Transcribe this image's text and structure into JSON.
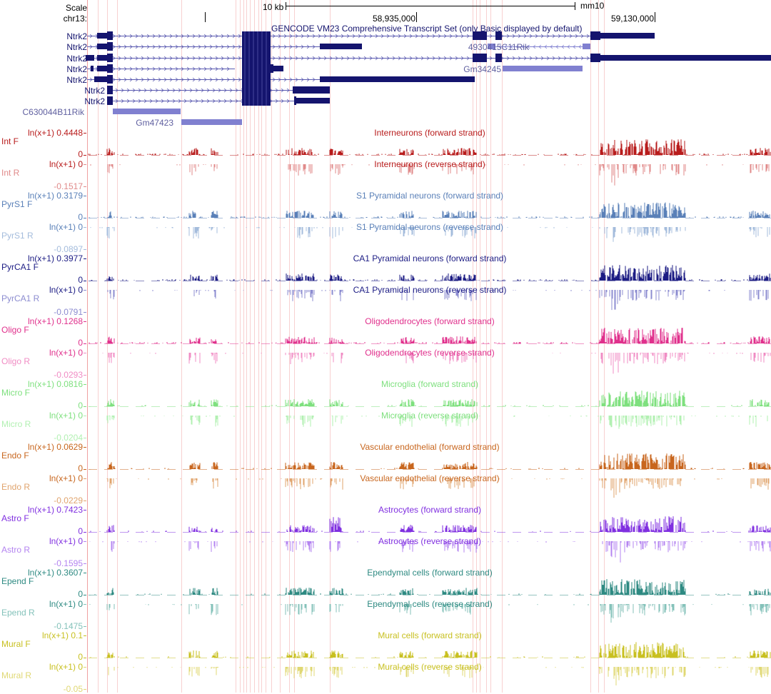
{
  "header": {
    "scale_label": "Scale",
    "chrom_label": "chr13:",
    "scale_bar_label": "10 kb",
    "assembly": "mm10",
    "positions": [
      "58,935,000",
      "59,130,000"
    ]
  },
  "gene_track": {
    "title": "GENCODE VM23 Comprehensive Transcript Set (only Basic displayed by default)",
    "colors": {
      "coding": "#14146e",
      "noncoding": "#8080d0"
    },
    "transcripts": [
      "Ntrk2",
      "Ntrk2",
      "Ntrk2",
      "Ntrk2",
      "Ntrk2",
      "Ntrk2",
      "Ntrk2"
    ],
    "other_genes": [
      "C630044B11Rik",
      "Gm47423",
      "4930415C11Rik",
      "Gm34245"
    ]
  },
  "scale_prefix": "ln(x+1)",
  "tracks": [
    {
      "name": "Int",
      "f_label": "Int F",
      "r_label": "Int R",
      "f_title": "Interneurons (forward strand)",
      "r_title": "Interneurons (reverse strand)",
      "max": "0.4448",
      "min": "-0.1517",
      "zero": "0",
      "f_color": "#b81c1c",
      "r_color": "#e08a8a"
    },
    {
      "name": "PyrS1",
      "f_label": "PyrS1 F",
      "r_label": "PyrS1 R",
      "f_title": "S1 Pyramidal neurons (forward strand)",
      "r_title": "S1 Pyramidal neurons (reverse strand)",
      "max": "0.3179",
      "min": "-0.0897",
      "zero": "0",
      "f_color": "#5a80b8",
      "r_color": "#a4bcdc"
    },
    {
      "name": "PyrCA1",
      "f_label": "PyrCA1 F",
      "r_label": "PyrCA1 R",
      "f_title": "CA1 Pyramidal neurons (forward strand)",
      "r_title": "CA1 Pyramidal neurons (reverse strand)",
      "max": "0.3977",
      "min": "-0.0791",
      "zero": "0",
      "f_color": "#1c1c84",
      "r_color": "#8c8cd0"
    },
    {
      "name": "Oligo",
      "f_label": "Oligo F",
      "r_label": "Oligo R",
      "f_title": "Oligodendrocytes (forward strand)",
      "r_title": "Oligodendrocytes (reverse strand)",
      "max": "0.1268",
      "min": "-0.0293",
      "zero": "0",
      "f_color": "#e0308c",
      "r_color": "#f08cc4"
    },
    {
      "name": "Micro",
      "f_label": "Micro F",
      "r_label": "Micro R",
      "f_title": "Microglia (forward strand)",
      "r_title": "Microglia (reverse strand)",
      "max": "0.0816",
      "min": "-0.0204",
      "zero": "0",
      "f_color": "#7ee07e",
      "r_color": "#b2f0b2"
    },
    {
      "name": "Endo",
      "f_label": "Endo F",
      "r_label": "Endo R",
      "f_title": "Vascular endothelial (forward strand)",
      "r_title": "Vascular endothelial (reverse strand)",
      "max": "0.0629",
      "min": "-0.0229",
      "zero": "0",
      "f_color": "#c8661e",
      "r_color": "#e0a46e"
    },
    {
      "name": "Astro",
      "f_label": "Astro F",
      "r_label": "Astro R",
      "f_title": "Astrocytes (forward strand)",
      "r_title": "Astrocytes (reverse strand)",
      "max": "0.7423",
      "min": "-0.1595",
      "zero": "0",
      "f_color": "#8030e0",
      "r_color": "#b484f0"
    },
    {
      "name": "Epend",
      "f_label": "Epend F",
      "r_label": "Epend R",
      "f_title": "Ependymal cells (forward strand)",
      "r_title": "Ependymal cells (reverse strand)",
      "max": "0.3607",
      "min": "-0.1475",
      "zero": "0",
      "f_color": "#2e8a82",
      "r_color": "#84c2ba"
    },
    {
      "name": "Mural",
      "f_label": "Mural F",
      "r_label": "Mural R",
      "f_title": "Mural cells (forward strand)",
      "r_title": "Mural cells (reverse strand)",
      "max": "0.1",
      "min": "-0.05",
      "zero": "0",
      "f_color": "#c8c020",
      "r_color": "#e0d874"
    }
  ]
}
